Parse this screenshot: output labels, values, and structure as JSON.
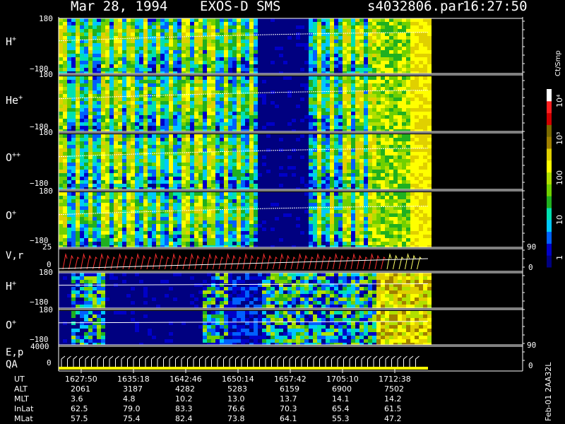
{
  "header": {
    "date": "Mar 28, 1994",
    "instrument": "EXOS-D SMS",
    "file": "s4032806.par",
    "time": "16:27:50"
  },
  "colorbar": {
    "unit": "Ct/Smp",
    "labels": [
      "1",
      "10",
      "100",
      "10³",
      "10⁴"
    ],
    "colors": [
      "#000080",
      "#0000c8",
      "#0060ff",
      "#00c8ff",
      "#00e0b0",
      "#20b020",
      "#70d000",
      "#b0e000",
      "#ffff00",
      "#e0d000",
      "#a08000",
      "#7a6a00",
      "#d00000",
      "#ff2020",
      "#ffffff"
    ]
  },
  "panels": [
    {
      "id": "h-plus",
      "ion": "H",
      "charge": "+",
      "ymax": "180",
      "ymin": "−180"
    },
    {
      "id": "he-plus",
      "ion": "He",
      "charge": "+",
      "ymax": "180",
      "ymin": "−180"
    },
    {
      "id": "o-pp",
      "ion": "O",
      "charge": "++",
      "ymax": "180",
      "ymin": "−180"
    },
    {
      "id": "o-plus",
      "ion": "O",
      "charge": "+",
      "ymax": "180",
      "ymin": "−180"
    }
  ],
  "vr_panel": {
    "label": "V,r",
    "ytop": "25",
    "ybot": "0",
    "right_top": "90",
    "right_bot": "0"
  },
  "lower_panels": [
    {
      "id": "h-plus-2",
      "ion": "H",
      "charge": "+",
      "ymax": "180",
      "ymin": "−180"
    },
    {
      "id": "o-plus-2",
      "ion": "O",
      "charge": "+",
      "ymax": "180",
      "ymin": "−180"
    }
  ],
  "ep_panel": {
    "label1": "E,p",
    "label2": "QA",
    "ytop": "4000",
    "ybot": "0",
    "right_top": "90",
    "right_bot": "0"
  },
  "footer": {
    "rows": [
      {
        "label": "UT",
        "values": [
          "1627:50",
          "1635:18",
          "1642:46",
          "1650:14",
          "1657:42",
          "1705:10",
          "1712:38"
        ]
      },
      {
        "label": "ALT",
        "values": [
          "2061",
          "3187",
          "4282",
          "5283",
          "6159",
          "6900",
          "7502"
        ]
      },
      {
        "label": "MLT",
        "values": [
          "3.6",
          "4.8",
          "10.2",
          "13.0",
          "13.7",
          "14.1",
          "14.2"
        ]
      },
      {
        "label": "InLat",
        "values": [
          "62.5",
          "79.0",
          "83.3",
          "76.6",
          "70.3",
          "65.4",
          "61.5"
        ]
      },
      {
        "label": "MLat",
        "values": [
          "57.5",
          "75.4",
          "82.4",
          "73.8",
          "64.1",
          "55.3",
          "47.2"
        ]
      }
    ],
    "stamp": "Feb-01 2AA32L"
  },
  "chart_data": {
    "type": "heatmap",
    "title": "",
    "x_ticks_ut": [
      "1627:50",
      "1635:18",
      "1642:46",
      "1650:14",
      "1657:42",
      "1705:10",
      "1712:38"
    ],
    "y_range_pitch": [
      -180,
      180
    ],
    "color_scale": "log",
    "color_range": [
      1,
      10000
    ]
  }
}
